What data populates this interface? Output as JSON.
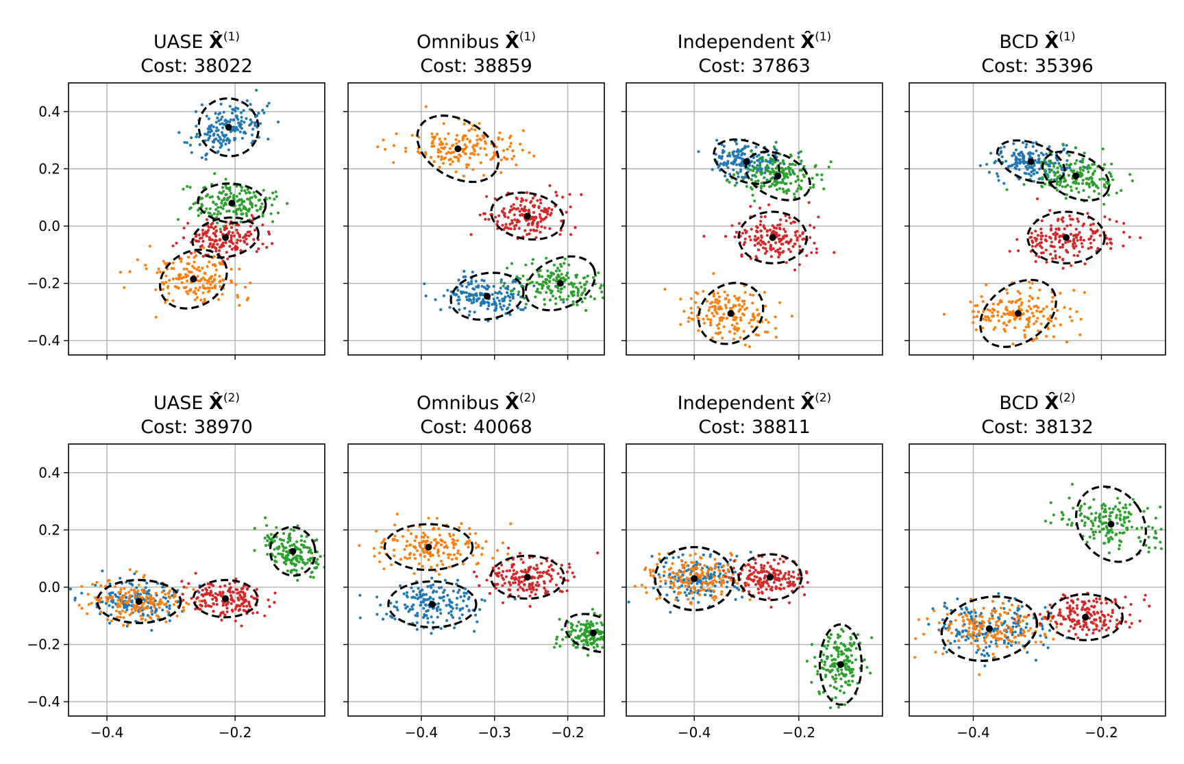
{
  "figure": {
    "grid": true,
    "sharex_columns": true,
    "sharey": true
  },
  "chart_data": [
    {
      "type": "scatter",
      "method": "UASE",
      "layer": "1",
      "title_main": "UASE ",
      "title_sup": "(1)",
      "cost_label": "Cost: 38022",
      "xlim": [
        -0.46,
        -0.06
      ],
      "ylim": [
        -0.45,
        0.5
      ],
      "xticks": [
        -0.4,
        -0.2
      ],
      "xtick_labels": [
        "−0.4",
        "−0.2"
      ],
      "yticks": [
        0.4,
        0.2,
        0.0,
        -0.2,
        -0.4
      ],
      "ytick_labels": [
        "0.4",
        "0.2",
        "0.0",
        "−0.2",
        "−0.4"
      ],
      "show_x_labels": false,
      "show_y_labels": true,
      "clusters": [
        {
          "color": "#1f77b4",
          "mean": [
            -0.21,
            0.345
          ],
          "sd": [
            0.028,
            0.045
          ],
          "angle": -25,
          "ell_rx": 0.047,
          "ell_ry": 0.1
        },
        {
          "color": "#2ca02c",
          "mean": [
            -0.205,
            0.08
          ],
          "sd": [
            0.032,
            0.035
          ],
          "angle": -5,
          "ell_rx": 0.053,
          "ell_ry": 0.068
        },
        {
          "color": "#d62728",
          "mean": [
            -0.215,
            -0.04
          ],
          "sd": [
            0.032,
            0.035
          ],
          "angle": 10,
          "ell_rx": 0.052,
          "ell_ry": 0.068
        },
        {
          "color": "#ff7f0e",
          "mean": [
            -0.265,
            -0.185
          ],
          "sd": [
            0.035,
            0.04
          ],
          "angle": 30,
          "ell_rx": 0.055,
          "ell_ry": 0.095
        }
      ]
    },
    {
      "type": "scatter",
      "method": "Omnibus",
      "layer": "1",
      "title_main": "Omnibus ",
      "title_sup": "(1)",
      "cost_label": "Cost: 38859",
      "xlim": [
        -0.5,
        -0.15
      ],
      "ylim": [
        -0.45,
        0.5
      ],
      "xticks": [
        -0.4,
        -0.3,
        -0.2
      ],
      "xtick_labels": [
        "−0.4",
        "−0.3",
        "−0.2"
      ],
      "yticks": [
        0.4,
        0.2,
        0.0,
        -0.2,
        -0.4
      ],
      "ytick_labels": [
        "0.4",
        "0.2",
        "0.0",
        "−0.2",
        "−0.4"
      ],
      "show_x_labels": false,
      "show_y_labels": false,
      "clusters": [
        {
          "color": "#ff7f0e",
          "mean": [
            -0.35,
            0.27
          ],
          "sd": [
            0.04,
            0.04
          ],
          "angle": -30,
          "ell_rx": 0.06,
          "ell_ry": 0.1
        },
        {
          "color": "#d62728",
          "mean": [
            -0.255,
            0.035
          ],
          "sd": [
            0.028,
            0.038
          ],
          "angle": -10,
          "ell_rx": 0.05,
          "ell_ry": 0.08
        },
        {
          "color": "#1f77b4",
          "mean": [
            -0.31,
            -0.245
          ],
          "sd": [
            0.028,
            0.038
          ],
          "angle": 10,
          "ell_rx": 0.05,
          "ell_ry": 0.08
        },
        {
          "color": "#2ca02c",
          "mean": [
            -0.21,
            -0.2
          ],
          "sd": [
            0.03,
            0.04
          ],
          "angle": 25,
          "ell_rx": 0.05,
          "ell_ry": 0.085
        }
      ]
    },
    {
      "type": "scatter",
      "method": "Independent",
      "layer": "1",
      "title_main": "Independent ",
      "title_sup": "(1)",
      "cost_label": "Cost: 37863",
      "xlim": [
        -0.53,
        -0.04
      ],
      "ylim": [
        -0.45,
        0.5
      ],
      "xticks": [
        -0.4,
        -0.2
      ],
      "xtick_labels": [
        "−0.4",
        "−0.2"
      ],
      "yticks": [
        0.4,
        0.2,
        0.0,
        -0.2,
        -0.4
      ],
      "ytick_labels": [
        "0.4",
        "0.2",
        "0.0",
        "−0.2",
        "−0.4"
      ],
      "show_x_labels": false,
      "show_y_labels": false,
      "clusters": [
        {
          "color": "#1f77b4",
          "mean": [
            -0.3,
            0.225
          ],
          "sd": [
            0.04,
            0.033
          ],
          "angle": -20,
          "ell_rx": 0.065,
          "ell_ry": 0.07
        },
        {
          "color": "#2ca02c",
          "mean": [
            -0.24,
            0.175
          ],
          "sd": [
            0.04,
            0.035
          ],
          "angle": -25,
          "ell_rx": 0.065,
          "ell_ry": 0.075
        },
        {
          "color": "#d62728",
          "mean": [
            -0.25,
            -0.04
          ],
          "sd": [
            0.04,
            0.04
          ],
          "angle": 0,
          "ell_rx": 0.065,
          "ell_ry": 0.09
        },
        {
          "color": "#ff7f0e",
          "mean": [
            -0.33,
            -0.305
          ],
          "sd": [
            0.04,
            0.045
          ],
          "angle": 35,
          "ell_rx": 0.065,
          "ell_ry": 0.1
        }
      ]
    },
    {
      "type": "scatter",
      "method": "BCD",
      "layer": "1",
      "title_main": "BCD ",
      "title_sup": "(1)",
      "cost_label": "Cost: 35396",
      "xlim": [
        -0.5,
        -0.1
      ],
      "ylim": [
        -0.45,
        0.5
      ],
      "xticks": [
        -0.4,
        -0.2
      ],
      "xtick_labels": [
        "−0.4",
        "−0.2"
      ],
      "yticks": [
        0.4,
        0.2,
        0.0,
        -0.2,
        -0.4
      ],
      "ytick_labels": [
        "0.4",
        "0.2",
        "0.0",
        "−0.2",
        "−0.4"
      ],
      "show_x_labels": false,
      "show_y_labels": false,
      "clusters": [
        {
          "color": "#1f77b4",
          "mean": [
            -0.31,
            0.225
          ],
          "sd": [
            0.035,
            0.03
          ],
          "angle": -20,
          "ell_rx": 0.055,
          "ell_ry": 0.065
        },
        {
          "color": "#2ca02c",
          "mean": [
            -0.24,
            0.175
          ],
          "sd": [
            0.035,
            0.035
          ],
          "angle": -25,
          "ell_rx": 0.055,
          "ell_ry": 0.075
        },
        {
          "color": "#d62728",
          "mean": [
            -0.255,
            -0.04
          ],
          "sd": [
            0.035,
            0.04
          ],
          "angle": 0,
          "ell_rx": 0.06,
          "ell_ry": 0.09
        },
        {
          "color": "#ff7f0e",
          "mean": [
            -0.33,
            -0.305
          ],
          "sd": [
            0.04,
            0.045
          ],
          "angle": 35,
          "ell_rx": 0.065,
          "ell_ry": 0.1
        }
      ]
    },
    {
      "type": "scatter",
      "method": "UASE",
      "layer": "2",
      "title_main": "UASE ",
      "title_sup": "(2)",
      "cost_label": "Cost: 38970",
      "xlim": [
        -0.46,
        -0.06
      ],
      "ylim": [
        -0.45,
        0.5
      ],
      "xticks": [
        -0.4,
        -0.2
      ],
      "xtick_labels": [
        "−0.4",
        "−0.2"
      ],
      "yticks": [
        0.4,
        0.2,
        0.0,
        -0.2,
        -0.4
      ],
      "ytick_labels": [
        "0.4",
        "0.2",
        "0.0",
        "−0.2",
        "−0.4"
      ],
      "show_x_labels": true,
      "show_y_labels": true,
      "clusters": [
        {
          "color": "#1f77b4",
          "mean": [
            -0.35,
            -0.05
          ],
          "sd": [
            0.04,
            0.035
          ],
          "angle": 0,
          "ell_rx": 0.065,
          "ell_ry": 0.075
        },
        {
          "color": "#ff7f0e",
          "mean": [
            -0.35,
            -0.05
          ],
          "sd": [
            0.04,
            0.035
          ],
          "angle": 0,
          "ell_rx": 0.065,
          "ell_ry": 0.075
        },
        {
          "color": "#d62728",
          "mean": [
            -0.215,
            -0.04
          ],
          "sd": [
            0.03,
            0.03
          ],
          "angle": 0,
          "ell_rx": 0.05,
          "ell_ry": 0.065
        },
        {
          "color": "#2ca02c",
          "mean": [
            -0.11,
            0.125
          ],
          "sd": [
            0.02,
            0.04
          ],
          "angle": 15,
          "ell_rx": 0.035,
          "ell_ry": 0.085
        }
      ]
    },
    {
      "type": "scatter",
      "method": "Omnibus",
      "layer": "2",
      "title_main": "Omnibus ",
      "title_sup": "(2)",
      "cost_label": "Cost: 40068",
      "xlim": [
        -0.5,
        -0.15
      ],
      "ylim": [
        -0.45,
        0.5
      ],
      "xticks": [
        -0.4,
        -0.3,
        -0.2
      ],
      "xtick_labels": [
        "−0.4",
        "−0.3",
        "−0.2"
      ],
      "yticks": [
        0.4,
        0.2,
        0.0,
        -0.2,
        -0.4
      ],
      "ytick_labels": [
        "0.4",
        "0.2",
        "0.0",
        "−0.2",
        "−0.4"
      ],
      "show_x_labels": true,
      "show_y_labels": false,
      "clusters": [
        {
          "color": "#ff7f0e",
          "mean": [
            -0.39,
            0.14
          ],
          "sd": [
            0.038,
            0.04
          ],
          "angle": 0,
          "ell_rx": 0.06,
          "ell_ry": 0.08
        },
        {
          "color": "#1f77b4",
          "mean": [
            -0.385,
            -0.06
          ],
          "sd": [
            0.038,
            0.04
          ],
          "angle": 0,
          "ell_rx": 0.06,
          "ell_ry": 0.08
        },
        {
          "color": "#d62728",
          "mean": [
            -0.255,
            0.035
          ],
          "sd": [
            0.03,
            0.035
          ],
          "angle": 0,
          "ell_rx": 0.05,
          "ell_ry": 0.075
        },
        {
          "color": "#2ca02c",
          "mean": [
            -0.165,
            -0.16
          ],
          "sd": [
            0.022,
            0.03
          ],
          "angle": -20,
          "ell_rx": 0.04,
          "ell_ry": 0.06
        }
      ]
    },
    {
      "type": "scatter",
      "method": "Independent",
      "layer": "2",
      "title_main": "Independent ",
      "title_sup": "(2)",
      "cost_label": "Cost: 38811",
      "xlim": [
        -0.53,
        -0.04
      ],
      "ylim": [
        -0.45,
        0.5
      ],
      "xticks": [
        -0.4,
        -0.2
      ],
      "xtick_labels": [
        "−0.4",
        "−0.2"
      ],
      "yticks": [
        0.4,
        0.2,
        0.0,
        -0.2,
        -0.4
      ],
      "ytick_labels": [
        "0.4",
        "0.2",
        "0.0",
        "−0.2",
        "−0.4"
      ],
      "show_x_labels": true,
      "show_y_labels": false,
      "clusters": [
        {
          "color": "#1f77b4",
          "mean": [
            -0.4,
            0.03
          ],
          "sd": [
            0.045,
            0.045
          ],
          "angle": 0,
          "ell_rx": 0.075,
          "ell_ry": 0.11
        },
        {
          "color": "#ff7f0e",
          "mean": [
            -0.4,
            0.03
          ],
          "sd": [
            0.045,
            0.045
          ],
          "angle": 0,
          "ell_rx": 0.075,
          "ell_ry": 0.11
        },
        {
          "color": "#d62728",
          "mean": [
            -0.255,
            0.035
          ],
          "sd": [
            0.035,
            0.035
          ],
          "angle": 0,
          "ell_rx": 0.06,
          "ell_ry": 0.08
        },
        {
          "color": "#2ca02c",
          "mean": [
            -0.12,
            -0.27
          ],
          "sd": [
            0.022,
            0.055
          ],
          "angle": 0,
          "ell_rx": 0.04,
          "ell_ry": 0.14
        }
      ]
    },
    {
      "type": "scatter",
      "method": "BCD",
      "layer": "2",
      "title_main": "BCD ",
      "title_sup": "(2)",
      "cost_label": "Cost: 38132",
      "xlim": [
        -0.5,
        -0.1
      ],
      "ylim": [
        -0.45,
        0.5
      ],
      "xticks": [
        -0.4,
        -0.2
      ],
      "xtick_labels": [
        "−0.4",
        "−0.2"
      ],
      "yticks": [
        0.4,
        0.2,
        0.0,
        -0.2,
        -0.4
      ],
      "ytick_labels": [
        "0.4",
        "0.2",
        "0.0",
        "−0.2",
        "−0.4"
      ],
      "show_x_labels": true,
      "show_y_labels": false,
      "clusters": [
        {
          "color": "#1f77b4",
          "mean": [
            -0.375,
            -0.145
          ],
          "sd": [
            0.045,
            0.045
          ],
          "angle": 10,
          "ell_rx": 0.075,
          "ell_ry": 0.11
        },
        {
          "color": "#ff7f0e",
          "mean": [
            -0.375,
            -0.145
          ],
          "sd": [
            0.045,
            0.045
          ],
          "angle": 10,
          "ell_rx": 0.075,
          "ell_ry": 0.11
        },
        {
          "color": "#d62728",
          "mean": [
            -0.225,
            -0.105
          ],
          "sd": [
            0.035,
            0.035
          ],
          "angle": 0,
          "ell_rx": 0.058,
          "ell_ry": 0.08
        },
        {
          "color": "#2ca02c",
          "mean": [
            -0.185,
            0.22
          ],
          "sd": [
            0.03,
            0.055
          ],
          "angle": 35,
          "ell_rx": 0.05,
          "ell_ry": 0.14
        }
      ]
    }
  ]
}
